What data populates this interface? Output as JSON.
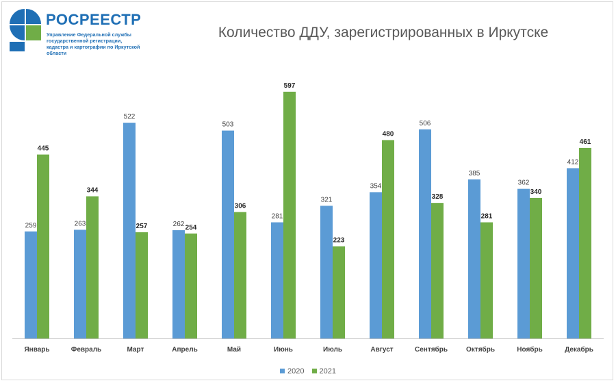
{
  "header": {
    "logo_name": "РОСРЕЕСТР",
    "logo_subtitle": "Управление Федеральной службы государственной регистрации, кадастра и картографии по Иркутской области"
  },
  "colors": {
    "series_2020": "#5b9bd5",
    "series_2021": "#70ad47",
    "accent": "#1f6fb5"
  },
  "chart_data": {
    "type": "bar",
    "title": "Количество ДДУ, зарегистрированных в Иркутске",
    "xlabel": "",
    "ylabel": "",
    "categories": [
      "Январь",
      "Февраль",
      "Март",
      "Апрель",
      "Май",
      "Июнь",
      "Июль",
      "Август",
      "Сентябрь",
      "Октябрь",
      "Ноябрь",
      "Декабрь"
    ],
    "series": [
      {
        "name": "2020",
        "values": [
          259,
          263,
          522,
          262,
          503,
          281,
          321,
          354,
          506,
          385,
          362,
          412
        ]
      },
      {
        "name": "2021",
        "values": [
          445,
          344,
          257,
          254,
          306,
          597,
          223,
          480,
          328,
          281,
          340,
          461
        ]
      }
    ],
    "ylim": [
      0,
      620
    ],
    "grid": false,
    "data_labels": true,
    "legend_position": "bottom"
  }
}
